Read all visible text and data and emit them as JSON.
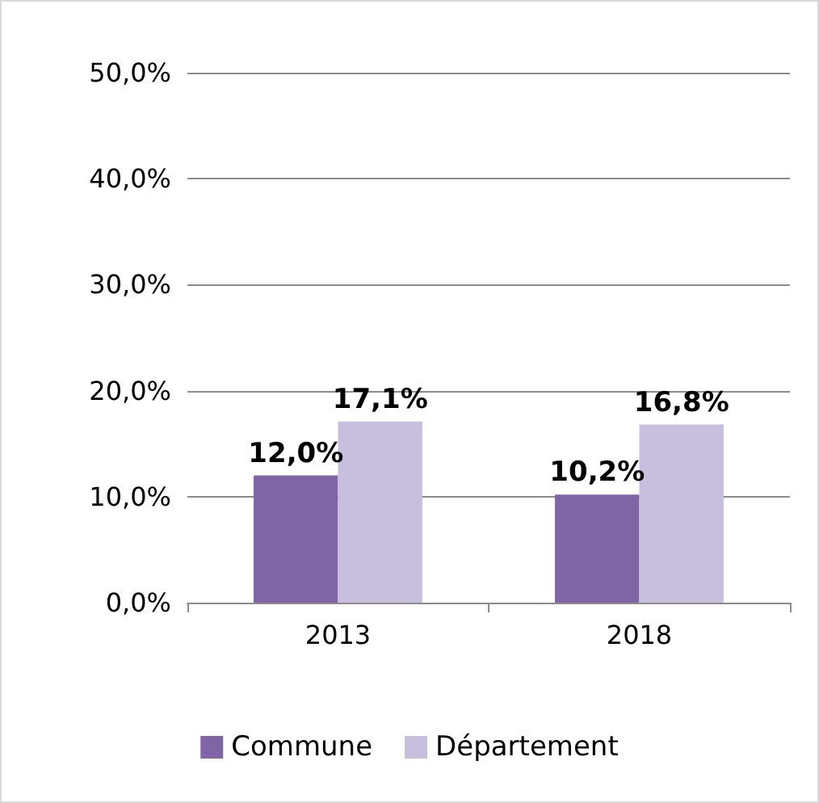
{
  "chart_data": {
    "type": "bar",
    "categories": [
      "2013",
      "2018"
    ],
    "series": [
      {
        "name": "Commune",
        "color": "#7f64a6",
        "values": [
          12.0,
          10.2
        ],
        "value_labels": [
          "12,0%",
          "10,2%"
        ]
      },
      {
        "name": "Département",
        "color": "#c8bedd",
        "values": [
          17.1,
          16.8
        ],
        "value_labels": [
          "17,1%",
          "16,8%"
        ]
      }
    ],
    "ylim": [
      0,
      50
    ],
    "yticks": [
      {
        "value": 0,
        "label": "0,0%"
      },
      {
        "value": 10,
        "label": "10,0%"
      },
      {
        "value": 20,
        "label": "20,0%"
      },
      {
        "value": 30,
        "label": "30,0%"
      },
      {
        "value": 40,
        "label": "40,0%"
      },
      {
        "value": 50,
        "label": "50,0%"
      }
    ],
    "grid": "y",
    "legend": "bottom"
  }
}
